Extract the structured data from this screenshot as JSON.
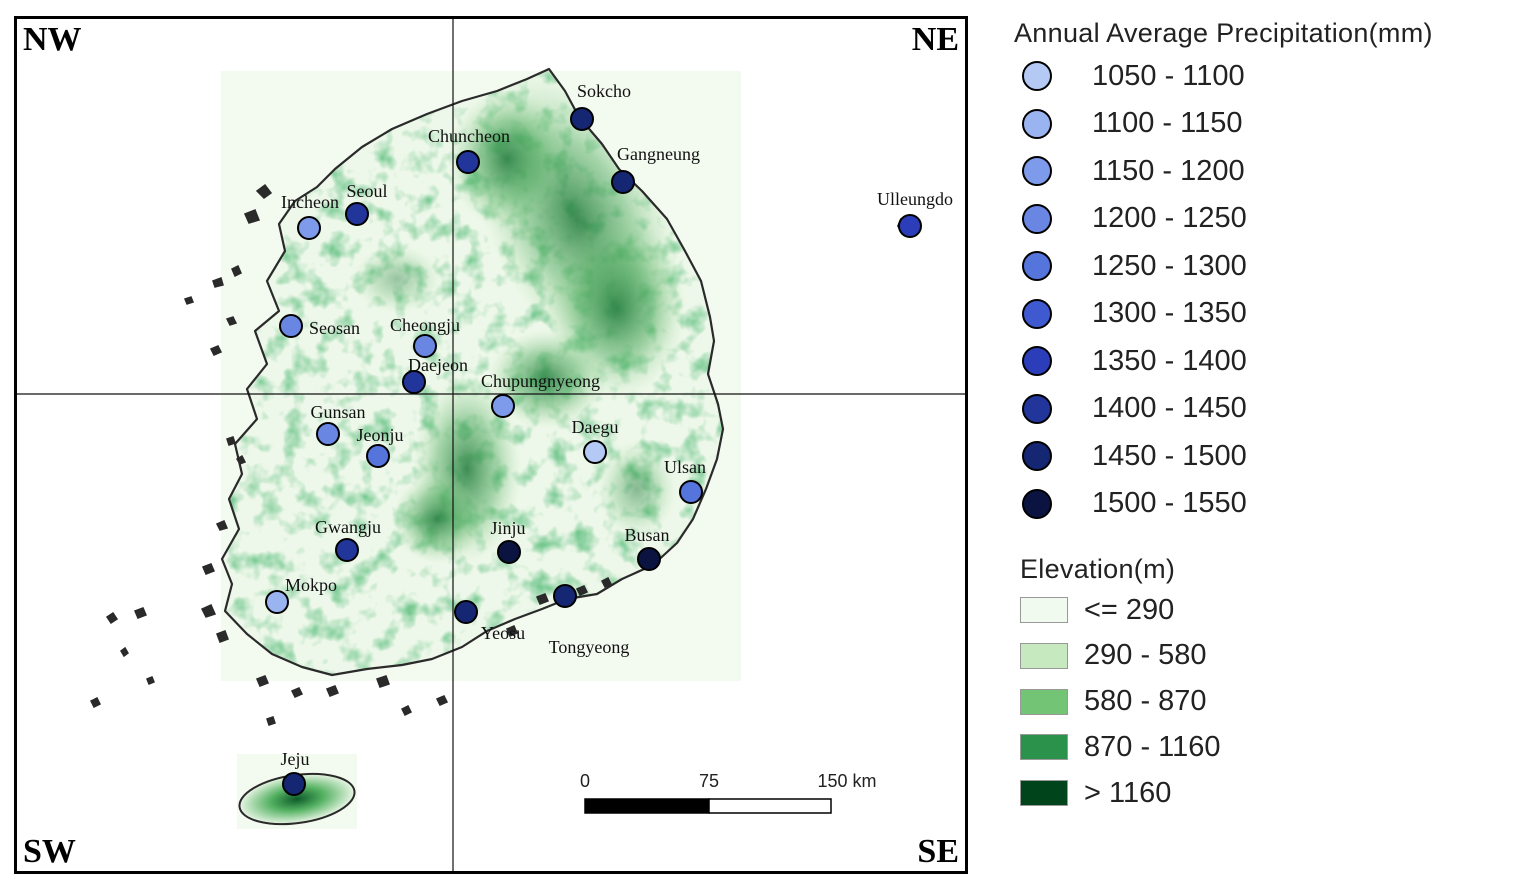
{
  "quadrants": {
    "nw": "NW",
    "ne": "NE",
    "sw": "SW",
    "se": "SE"
  },
  "precip_legend": {
    "title": "Annual Average Precipitation(mm)",
    "classes": [
      {
        "label": "1050 - 1100",
        "color": "#b4caf5"
      },
      {
        "label": "1100 - 1150",
        "color": "#9ab3f1"
      },
      {
        "label": "1150 - 1200",
        "color": "#7e9aeb"
      },
      {
        "label": "1200 - 1250",
        "color": "#6a86e3"
      },
      {
        "label": "1250 - 1300",
        "color": "#5574dc"
      },
      {
        "label": "1300 - 1350",
        "color": "#3f5ad0"
      },
      {
        "label": "1350 - 1400",
        "color": "#2b3db9"
      },
      {
        "label": "1400 - 1450",
        "color": "#22359a"
      },
      {
        "label": "1450 - 1500",
        "color": "#152673"
      },
      {
        "label": "1500 - 1550",
        "color": "#0b1441"
      }
    ]
  },
  "elevation_legend": {
    "title": "Elevation(m)",
    "classes": [
      {
        "label": "<= 290",
        "color": "#f1faee"
      },
      {
        "label": "290 - 580",
        "color": "#c7e9c0"
      },
      {
        "label": "580 - 870",
        "color": "#74c476"
      },
      {
        "label": "870 - 1160",
        "color": "#2a924a"
      },
      {
        "label": "> 1160",
        "color": "#00441b"
      }
    ]
  },
  "scale_bar": {
    "tick_0": "0",
    "tick_1": "75",
    "tick_2": "150 km"
  },
  "stations": [
    {
      "name": "Sokcho",
      "class": 8
    },
    {
      "name": "Chuncheon",
      "class": 7
    },
    {
      "name": "Gangneung",
      "class": 8
    },
    {
      "name": "Seoul",
      "class": 7
    },
    {
      "name": "Incheon",
      "class": 2
    },
    {
      "name": "Ulleungdo",
      "class": 6
    },
    {
      "name": "Seosan",
      "class": 3
    },
    {
      "name": "Cheongju",
      "class": 3
    },
    {
      "name": "Daejeon",
      "class": 7
    },
    {
      "name": "Chupungnyeong",
      "class": 2
    },
    {
      "name": "Gunsan",
      "class": 3
    },
    {
      "name": "Jeonju",
      "class": 4
    },
    {
      "name": "Daegu",
      "class": 0
    },
    {
      "name": "Ulsan",
      "class": 4
    },
    {
      "name": "Gwangju",
      "class": 7
    },
    {
      "name": "Jinju",
      "class": 9
    },
    {
      "name": "Busan",
      "class": 9
    },
    {
      "name": "Mokpo",
      "class": 1
    },
    {
      "name": "Yeosu",
      "class": 8
    },
    {
      "name": "Tongyeong",
      "class": 8
    },
    {
      "name": "Jeju",
      "class": 8
    }
  ]
}
